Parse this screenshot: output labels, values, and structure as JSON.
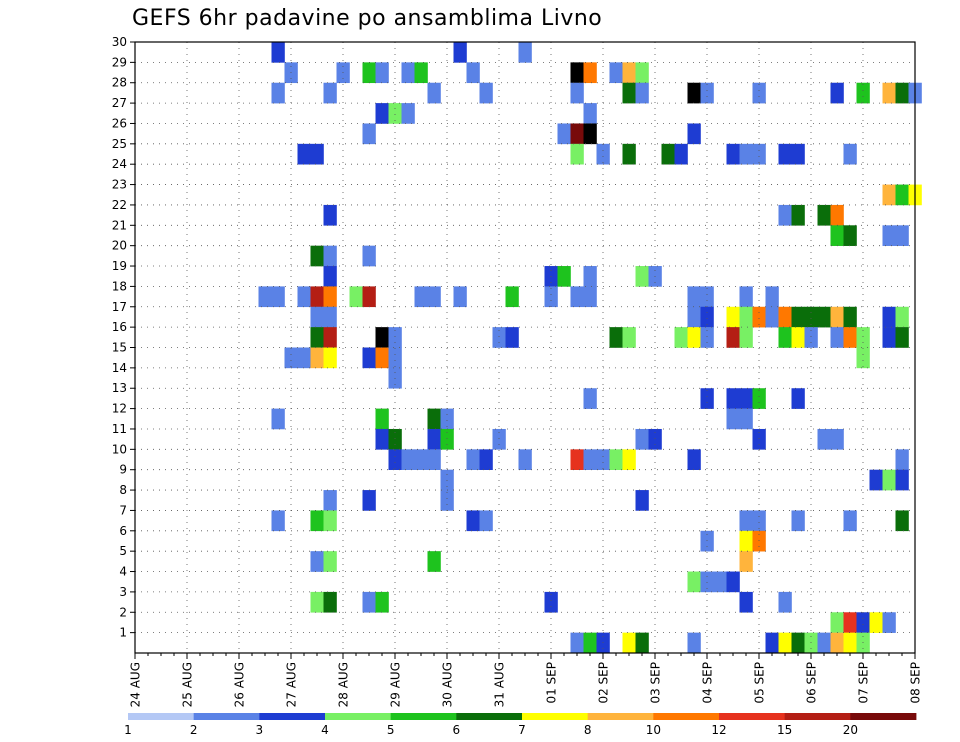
{
  "chart_data": {
    "type": "heatmap",
    "title": "GEFS 6hr padavine po ansamblima Livno",
    "xlabel": "",
    "ylabel": "",
    "x_tick_labels": [
      "24 AUG",
      "25 AUG",
      "26 AUG",
      "27 AUG",
      "28 AUG",
      "29 AUG",
      "30 AUG",
      "31 AUG",
      "01 SEP",
      "02 SEP",
      "03 SEP",
      "04 SEP",
      "05 SEP",
      "06 SEP",
      "07 SEP",
      "08 SEP"
    ],
    "y_tick_labels": [
      "1",
      "2",
      "3",
      "4",
      "5",
      "6",
      "7",
      "8",
      "9",
      "10",
      "11",
      "12",
      "13",
      "14",
      "15",
      "16",
      "17",
      "18",
      "19",
      "20",
      "21",
      "22",
      "23",
      "24",
      "25",
      "26",
      "27",
      "28",
      "29",
      "30"
    ],
    "xlim_steps": [
      0,
      60
    ],
    "ylim": [
      0,
      30
    ],
    "grid": true,
    "legend_position": "bottom",
    "colorbar": {
      "thresholds": [
        "1",
        "2",
        "3",
        "4",
        "5",
        "6",
        "7",
        "8",
        "10",
        "12",
        "15",
        "20"
      ],
      "colors": [
        "#b4c8f5",
        "#5a82e6",
        "#1e3cd2",
        "#78f064",
        "#1ec31e",
        "#0a6e0a",
        "#ffff00",
        "#ffb43c",
        "#ff7800",
        "#e6321e",
        "#b41e14",
        "#780a0a"
      ]
    },
    "cells": [
      [
        11,
        29,
        2
      ],
      [
        25,
        29,
        2
      ],
      [
        30,
        29,
        1
      ],
      [
        12,
        28,
        1
      ],
      [
        16,
        28,
        1
      ],
      [
        18,
        28,
        4
      ],
      [
        19,
        28,
        1
      ],
      [
        21,
        28,
        1
      ],
      [
        22,
        28,
        4
      ],
      [
        26,
        28,
        1
      ],
      [
        34,
        28,
        12
      ],
      [
        35,
        28,
        8
      ],
      [
        37,
        28,
        1
      ],
      [
        38,
        28,
        7
      ],
      [
        39,
        28,
        3
      ],
      [
        11,
        27,
        1
      ],
      [
        15,
        27,
        1
      ],
      [
        23,
        27,
        1
      ],
      [
        27,
        27,
        1
      ],
      [
        34,
        27,
        1
      ],
      [
        38,
        27,
        5
      ],
      [
        39,
        27,
        1
      ],
      [
        43,
        27,
        12
      ],
      [
        44,
        27,
        1
      ],
      [
        48,
        27,
        1
      ],
      [
        54,
        27,
        2
      ],
      [
        56,
        27,
        4
      ],
      [
        58,
        27,
        7
      ],
      [
        59,
        27,
        5
      ],
      [
        60,
        27,
        1
      ],
      [
        19,
        26,
        2
      ],
      [
        20,
        26,
        3
      ],
      [
        21,
        26,
        1
      ],
      [
        35,
        26,
        1
      ],
      [
        18,
        25,
        1
      ],
      [
        33,
        25,
        1
      ],
      [
        34,
        25,
        11
      ],
      [
        35,
        25,
        12
      ],
      [
        43,
        25,
        2
      ],
      [
        13,
        24,
        2
      ],
      [
        14,
        24,
        2
      ],
      [
        34,
        24,
        3
      ],
      [
        36,
        24,
        1
      ],
      [
        38,
        24,
        5
      ],
      [
        41,
        24,
        5
      ],
      [
        42,
        24,
        2
      ],
      [
        46,
        24,
        2
      ],
      [
        47,
        24,
        1
      ],
      [
        48,
        24,
        1
      ],
      [
        50,
        24,
        2
      ],
      [
        51,
        24,
        2
      ],
      [
        55,
        24,
        1
      ],
      [
        58,
        22,
        7
      ],
      [
        59,
        22,
        4
      ],
      [
        60,
        22,
        6
      ],
      [
        15,
        21,
        2
      ],
      [
        50,
        21,
        1
      ],
      [
        51,
        21,
        5
      ],
      [
        53,
        21,
        5
      ],
      [
        54,
        21,
        8
      ],
      [
        54,
        20,
        4
      ],
      [
        55,
        20,
        5
      ],
      [
        58,
        20,
        1
      ],
      [
        59,
        20,
        1
      ],
      [
        14,
        19,
        5
      ],
      [
        15,
        19,
        1
      ],
      [
        18,
        19,
        1
      ],
      [
        15,
        18,
        2
      ],
      [
        32,
        18,
        2
      ],
      [
        33,
        18,
        4
      ],
      [
        35,
        18,
        1
      ],
      [
        39,
        18,
        3
      ],
      [
        40,
        18,
        1
      ],
      [
        10,
        17,
        1
      ],
      [
        11,
        17,
        1
      ],
      [
        13,
        17,
        1
      ],
      [
        14,
        17,
        10
      ],
      [
        15,
        17,
        8
      ],
      [
        17,
        17,
        3
      ],
      [
        18,
        17,
        10
      ],
      [
        22,
        17,
        1
      ],
      [
        23,
        17,
        1
      ],
      [
        25,
        17,
        1
      ],
      [
        29,
        17,
        4
      ],
      [
        32,
        17,
        1
      ],
      [
        34,
        17,
        1
      ],
      [
        35,
        17,
        1
      ],
      [
        43,
        17,
        1
      ],
      [
        44,
        17,
        1
      ],
      [
        47,
        17,
        1
      ],
      [
        49,
        17,
        1
      ],
      [
        14,
        16,
        1
      ],
      [
        15,
        16,
        1
      ],
      [
        43,
        16,
        1
      ],
      [
        44,
        16,
        2
      ],
      [
        46,
        16,
        6
      ],
      [
        47,
        16,
        3
      ],
      [
        48,
        16,
        8
      ],
      [
        49,
        16,
        1
      ],
      [
        50,
        16,
        8
      ],
      [
        51,
        16,
        5
      ],
      [
        52,
        16,
        5
      ],
      [
        53,
        16,
        5
      ],
      [
        54,
        16,
        7
      ],
      [
        55,
        16,
        5
      ],
      [
        58,
        16,
        2
      ],
      [
        59,
        16,
        3
      ],
      [
        14,
        15,
        5
      ],
      [
        15,
        15,
        10
      ],
      [
        19,
        15,
        12
      ],
      [
        20,
        15,
        1
      ],
      [
        28,
        15,
        1
      ],
      [
        29,
        15,
        2
      ],
      [
        37,
        15,
        5
      ],
      [
        38,
        15,
        3
      ],
      [
        42,
        15,
        3
      ],
      [
        43,
        15,
        6
      ],
      [
        44,
        15,
        1
      ],
      [
        46,
        15,
        10
      ],
      [
        47,
        15,
        3
      ],
      [
        50,
        15,
        4
      ],
      [
        51,
        15,
        6
      ],
      [
        52,
        15,
        1
      ],
      [
        54,
        15,
        1
      ],
      [
        55,
        15,
        8
      ],
      [
        56,
        15,
        3
      ],
      [
        58,
        15,
        2
      ],
      [
        59,
        15,
        5
      ],
      [
        12,
        14,
        1
      ],
      [
        13,
        14,
        1
      ],
      [
        14,
        14,
        7
      ],
      [
        15,
        14,
        6
      ],
      [
        18,
        14,
        2
      ],
      [
        19,
        14,
        8
      ],
      [
        20,
        14,
        1
      ],
      [
        56,
        14,
        3
      ],
      [
        20,
        13,
        1
      ],
      [
        35,
        12,
        1
      ],
      [
        44,
        12,
        2
      ],
      [
        46,
        12,
        2
      ],
      [
        47,
        12,
        2
      ],
      [
        48,
        12,
        4
      ],
      [
        51,
        12,
        2
      ],
      [
        11,
        11,
        1
      ],
      [
        19,
        11,
        4
      ],
      [
        23,
        11,
        5
      ],
      [
        24,
        11,
        1
      ],
      [
        46,
        11,
        1
      ],
      [
        47,
        11,
        1
      ],
      [
        19,
        10,
        2
      ],
      [
        20,
        10,
        5
      ],
      [
        23,
        10,
        2
      ],
      [
        24,
        10,
        4
      ],
      [
        28,
        10,
        1
      ],
      [
        39,
        10,
        1
      ],
      [
        40,
        10,
        2
      ],
      [
        48,
        10,
        2
      ],
      [
        53,
        10,
        1
      ],
      [
        54,
        10,
        1
      ],
      [
        20,
        9,
        2
      ],
      [
        21,
        9,
        1
      ],
      [
        22,
        9,
        1
      ],
      [
        23,
        9,
        1
      ],
      [
        26,
        9,
        1
      ],
      [
        27,
        9,
        2
      ],
      [
        30,
        9,
        1
      ],
      [
        34,
        9,
        9
      ],
      [
        35,
        9,
        1
      ],
      [
        36,
        9,
        1
      ],
      [
        37,
        9,
        3
      ],
      [
        38,
        9,
        6
      ],
      [
        43,
        9,
        2
      ],
      [
        59,
        9,
        1
      ],
      [
        24,
        8,
        1
      ],
      [
        57,
        8,
        2
      ],
      [
        58,
        8,
        3
      ],
      [
        59,
        8,
        2
      ],
      [
        15,
        7,
        1
      ],
      [
        18,
        7,
        2
      ],
      [
        24,
        7,
        1
      ],
      [
        39,
        7,
        2
      ],
      [
        11,
        6,
        1
      ],
      [
        14,
        6,
        4
      ],
      [
        15,
        6,
        3
      ],
      [
        26,
        6,
        2
      ],
      [
        27,
        6,
        1
      ],
      [
        47,
        6,
        1
      ],
      [
        48,
        6,
        1
      ],
      [
        51,
        6,
        1
      ],
      [
        55,
        6,
        1
      ],
      [
        59,
        6,
        5
      ],
      [
        44,
        5,
        1
      ],
      [
        47,
        5,
        6
      ],
      [
        48,
        5,
        8
      ],
      [
        14,
        4,
        1
      ],
      [
        15,
        4,
        3
      ],
      [
        23,
        4,
        4
      ],
      [
        47,
        4,
        7
      ],
      [
        43,
        3,
        3
      ],
      [
        44,
        3,
        1
      ],
      [
        45,
        3,
        1
      ],
      [
        46,
        3,
        2
      ],
      [
        14,
        2,
        3
      ],
      [
        15,
        2,
        5
      ],
      [
        18,
        2,
        1
      ],
      [
        19,
        2,
        4
      ],
      [
        32,
        2,
        2
      ],
      [
        47,
        2,
        2
      ],
      [
        50,
        2,
        1
      ],
      [
        54,
        1,
        3
      ],
      [
        55,
        1,
        9
      ],
      [
        56,
        1,
        2
      ],
      [
        57,
        1,
        6
      ],
      [
        58,
        1,
        1
      ],
      [
        34,
        0,
        1
      ],
      [
        35,
        0,
        4
      ],
      [
        36,
        0,
        2
      ],
      [
        38,
        0,
        6
      ],
      [
        39,
        0,
        5
      ],
      [
        43,
        0,
        1
      ],
      [
        49,
        0,
        2
      ],
      [
        50,
        0,
        6
      ],
      [
        51,
        0,
        5
      ],
      [
        52,
        0,
        3
      ],
      [
        53,
        0,
        1
      ],
      [
        54,
        0,
        7
      ],
      [
        55,
        0,
        6
      ],
      [
        56,
        0,
        3
      ]
    ]
  }
}
